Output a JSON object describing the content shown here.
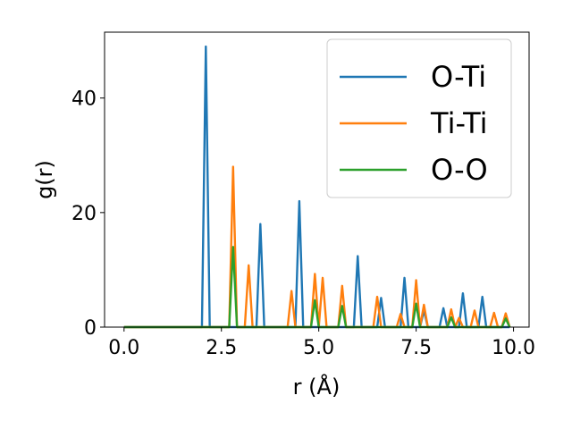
{
  "chart_data": {
    "type": "line",
    "xlabel": "r (Å)",
    "ylabel": "g(r)",
    "xlim": [
      -0.5,
      10.4
    ],
    "ylim": [
      0,
      51.5
    ],
    "xticks": [
      0.0,
      2.5,
      5.0,
      7.5,
      10.0
    ],
    "xtick_labels": [
      "0.0",
      "2.5",
      "5.0",
      "7.5",
      "10.0"
    ],
    "yticks": [
      0,
      20,
      40
    ],
    "ytick_labels": [
      "0",
      "20",
      "40"
    ],
    "grid": false,
    "legend_position": "top-right",
    "series": [
      {
        "name": "O-Ti",
        "color": "#1f77b4",
        "points": [
          [
            0,
            0
          ],
          [
            2.0,
            0
          ],
          [
            2.1,
            49
          ],
          [
            2.2,
            0
          ],
          [
            3.4,
            0
          ],
          [
            3.5,
            18
          ],
          [
            3.6,
            0
          ],
          [
            4.4,
            0
          ],
          [
            4.5,
            22
          ],
          [
            4.6,
            0
          ],
          [
            5.9,
            0
          ],
          [
            6.0,
            12.4
          ],
          [
            6.1,
            0
          ],
          [
            6.5,
            0
          ],
          [
            6.6,
            5.1
          ],
          [
            6.7,
            0
          ],
          [
            7.1,
            0
          ],
          [
            7.2,
            8.6
          ],
          [
            7.3,
            0
          ],
          [
            7.6,
            0
          ],
          [
            7.7,
            2.9
          ],
          [
            7.8,
            0
          ],
          [
            8.1,
            0
          ],
          [
            8.2,
            3.3
          ],
          [
            8.3,
            0
          ],
          [
            8.6,
            0
          ],
          [
            8.7,
            5.9
          ],
          [
            8.8,
            0
          ],
          [
            9.1,
            0
          ],
          [
            9.2,
            5.3
          ],
          [
            9.3,
            0
          ],
          [
            9.9,
            0
          ]
        ]
      },
      {
        "name": "Ti-Ti",
        "color": "#ff7f0e",
        "points": [
          [
            0,
            0
          ],
          [
            2.7,
            0
          ],
          [
            2.8,
            28
          ],
          [
            2.9,
            0
          ],
          [
            3.1,
            0
          ],
          [
            3.2,
            10.8
          ],
          [
            3.3,
            0
          ],
          [
            4.2,
            0
          ],
          [
            4.3,
            6.3
          ],
          [
            4.4,
            0
          ],
          [
            4.8,
            0
          ],
          [
            4.9,
            9.3
          ],
          [
            5.0,
            0
          ],
          [
            5.0,
            0
          ],
          [
            5.1,
            8.6
          ],
          [
            5.2,
            0
          ],
          [
            5.5,
            0
          ],
          [
            5.6,
            7.2
          ],
          [
            5.7,
            0
          ],
          [
            6.4,
            0
          ],
          [
            6.5,
            5.3
          ],
          [
            6.6,
            0
          ],
          [
            7.0,
            0
          ],
          [
            7.1,
            2.3
          ],
          [
            7.2,
            0
          ],
          [
            7.4,
            0
          ],
          [
            7.5,
            8.2
          ],
          [
            7.6,
            0
          ],
          [
            7.6,
            0
          ],
          [
            7.7,
            3.9
          ],
          [
            7.8,
            0
          ],
          [
            8.3,
            0
          ],
          [
            8.4,
            3.1
          ],
          [
            8.5,
            0
          ],
          [
            8.5,
            0
          ],
          [
            8.6,
            1.6
          ],
          [
            8.7,
            0
          ],
          [
            8.9,
            0
          ],
          [
            9.0,
            2.9
          ],
          [
            9.1,
            0
          ],
          [
            9.4,
            0
          ],
          [
            9.5,
            2.5
          ],
          [
            9.6,
            0
          ],
          [
            9.7,
            0
          ],
          [
            9.8,
            2.4
          ],
          [
            9.9,
            0
          ]
        ]
      },
      {
        "name": "O-O",
        "color": "#2ca02c",
        "points": [
          [
            0,
            0
          ],
          [
            2.7,
            0
          ],
          [
            2.8,
            14
          ],
          [
            2.9,
            0
          ],
          [
            4.8,
            0
          ],
          [
            4.9,
            4.7
          ],
          [
            5.0,
            0
          ],
          [
            5.5,
            0
          ],
          [
            5.6,
            3.7
          ],
          [
            5.7,
            0
          ],
          [
            7.4,
            0
          ],
          [
            7.5,
            4.1
          ],
          [
            7.6,
            0
          ],
          [
            8.3,
            0
          ],
          [
            8.4,
            1.7
          ],
          [
            8.5,
            0
          ],
          [
            9.7,
            0
          ],
          [
            9.8,
            1.5
          ],
          [
            9.9,
            0
          ]
        ]
      }
    ]
  }
}
